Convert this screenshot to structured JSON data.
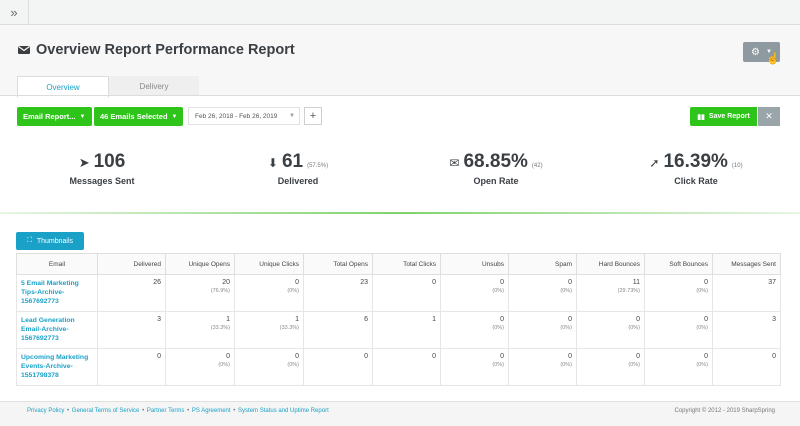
{
  "topbar": {
    "expand_glyph": "»"
  },
  "header": {
    "title": "Overview Report Performance Report",
    "icon": "envelope-icon",
    "settings_icon": "gear-icon"
  },
  "tabs": [
    {
      "label": "Overview",
      "active": true
    },
    {
      "label": "Delivery",
      "active": false
    }
  ],
  "toolbar": {
    "email_report_label": "Email Report...",
    "emails_selected_label": "46 Emails Selected",
    "date_range": "Feb 26, 2018 - Feb 26, 2019",
    "save_report_label": "Save Report",
    "close_glyph": "✕",
    "plus_glyph": "+"
  },
  "stats": [
    {
      "value": "106",
      "sub": "",
      "label": "Messages Sent",
      "icon": "paper-plane-icon"
    },
    {
      "value": "61",
      "sub": "(57.5%)",
      "label": "Delivered",
      "icon": "inbox-download-icon"
    },
    {
      "value": "68.85%",
      "sub": "(42)",
      "label": "Open Rate",
      "icon": "open-envelope-icon"
    },
    {
      "value": "16.39%",
      "sub": "(10)",
      "label": "Click Rate",
      "icon": "pointer-icon"
    }
  ],
  "thumbnails_label": "Thumbnails",
  "table": {
    "columns": [
      "Email",
      "Delivered",
      "Unique Opens",
      "Unique Clicks",
      "Total Opens",
      "Total Clicks",
      "Unsubs",
      "Spam",
      "Hard Bounces",
      "Soft Bounces",
      "Messages Sent"
    ],
    "rows": [
      {
        "email": "5 Email Marketing Tips-Archive-1567692773",
        "cells": [
          {
            "v": "26",
            "p": ""
          },
          {
            "v": "20",
            "p": "(76.9%)"
          },
          {
            "v": "0",
            "p": "(0%)"
          },
          {
            "v": "23",
            "p": ""
          },
          {
            "v": "0",
            "p": ""
          },
          {
            "v": "0",
            "p": "(0%)"
          },
          {
            "v": "0",
            "p": "(0%)"
          },
          {
            "v": "11",
            "p": "(29.73%)"
          },
          {
            "v": "0",
            "p": "(0%)"
          },
          {
            "v": "37",
            "p": ""
          }
        ]
      },
      {
        "email": "Lead Generation Email-Archive-1567692773",
        "cells": [
          {
            "v": "3",
            "p": ""
          },
          {
            "v": "1",
            "p": "(33.3%)"
          },
          {
            "v": "1",
            "p": "(33.3%)"
          },
          {
            "v": "6",
            "p": ""
          },
          {
            "v": "1",
            "p": ""
          },
          {
            "v": "0",
            "p": "(0%)"
          },
          {
            "v": "0",
            "p": "(0%)"
          },
          {
            "v": "0",
            "p": "(0%)"
          },
          {
            "v": "0",
            "p": "(0%)"
          },
          {
            "v": "3",
            "p": ""
          }
        ]
      },
      {
        "email": "Upcoming Marketing Events-Archive-1551798378",
        "cells": [
          {
            "v": "0",
            "p": ""
          },
          {
            "v": "0",
            "p": "(0%)"
          },
          {
            "v": "0",
            "p": "(0%)"
          },
          {
            "v": "0",
            "p": ""
          },
          {
            "v": "0",
            "p": ""
          },
          {
            "v": "0",
            "p": "(0%)"
          },
          {
            "v": "0",
            "p": "(0%)"
          },
          {
            "v": "0",
            "p": "(0%)"
          },
          {
            "v": "0",
            "p": "(0%)"
          },
          {
            "v": "0",
            "p": ""
          }
        ]
      }
    ]
  },
  "footer": {
    "links": [
      "Privacy Policy",
      "General Terms of Service",
      "Partner Terms",
      "PS Agreement",
      "System Status and Uptime Report"
    ],
    "separator": "•",
    "copyright": "Copyright © 2012 - 2019 SharpSpring"
  },
  "colors": {
    "green": "#2ec41a",
    "blue": "#1aa1c8",
    "gray_button": "#8e9aa0"
  }
}
